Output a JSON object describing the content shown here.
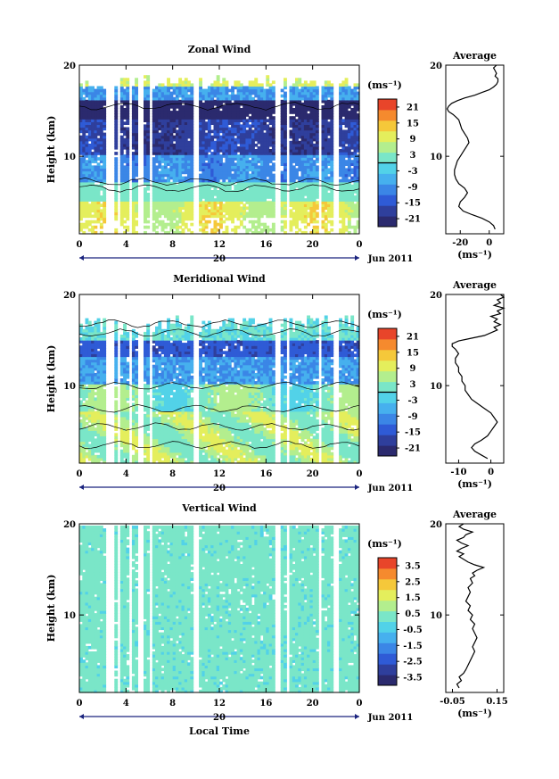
{
  "chart_data": [
    {
      "type": "heatmap",
      "title": "Zonal Wind",
      "ylabel": "Height (km)",
      "xlim": [
        0,
        24
      ],
      "ylim": [
        1.5,
        20
      ],
      "xticks": [
        "0",
        "4",
        "8",
        "12",
        "16",
        "20",
        "0"
      ],
      "yticks": [
        "10",
        "20"
      ],
      "date_label": "20",
      "month_label": "Jun 2011",
      "colorbar": {
        "unit": "(ms⁻¹)",
        "ticks": [
          "21",
          "15",
          "9",
          "3",
          "-3",
          "-9",
          "-15",
          "-21"
        ],
        "range": [
          -24,
          24
        ]
      },
      "profile": {
        "title": "Average",
        "unit": "(ms⁻¹)",
        "xticks": [
          "-20",
          "0"
        ],
        "xlim": [
          -30,
          10
        ],
        "yticks": [
          "10",
          "20"
        ],
        "x": [
          4,
          3,
          0,
          -5,
          -12,
          -18,
          -21,
          -20,
          -17,
          -15,
          -17,
          -21,
          -23,
          -24,
          -24,
          -23,
          -22,
          -20,
          -18,
          -16,
          -14,
          -15,
          -17,
          -19,
          -20,
          -21,
          -23,
          -25,
          -28,
          -29,
          -28,
          -26,
          -22,
          -17,
          -10,
          -5,
          0,
          3,
          5,
          6,
          6,
          4,
          5,
          4,
          3,
          5
        ],
        "y": [
          2.0,
          2.4,
          2.8,
          3.2,
          3.6,
          4.0,
          4.5,
          5.0,
          5.5,
          6.0,
          6.5,
          7.0,
          7.5,
          8.0,
          8.5,
          9.0,
          9.5,
          10.0,
          10.5,
          11.0,
          11.5,
          12.0,
          12.5,
          13.0,
          13.5,
          14.0,
          14.3,
          14.6,
          14.9,
          15.2,
          15.5,
          15.8,
          16.1,
          16.4,
          16.7,
          17.0,
          17.3,
          17.6,
          17.9,
          18.2,
          18.5,
          18.8,
          19.1,
          19.4,
          19.7,
          20.0
        ]
      }
    },
    {
      "type": "heatmap",
      "title": "Meridional Wind",
      "ylabel": "Height (km)",
      "xlim": [
        0,
        24
      ],
      "ylim": [
        1.5,
        20
      ],
      "xticks": [
        "0",
        "4",
        "8",
        "12",
        "16",
        "20",
        "0"
      ],
      "yticks": [
        "10",
        "20"
      ],
      "date_label": "20",
      "month_label": "Jun 2011",
      "colorbar": {
        "unit": "(ms⁻¹)",
        "ticks": [
          "21",
          "15",
          "9",
          "3",
          "-3",
          "-9",
          "-15",
          "-21"
        ],
        "range": [
          -24,
          24
        ]
      },
      "profile": {
        "title": "Average",
        "unit": "(ms⁻¹)",
        "xticks": [
          "-10",
          "0"
        ],
        "xlim": [
          -14,
          4
        ],
        "yticks": [
          "10",
          "20"
        ],
        "x": [
          -1,
          -3,
          -5,
          -6,
          -5,
          -3,
          -1,
          0,
          1,
          2,
          1,
          0,
          -2,
          -4,
          -6,
          -7,
          -8,
          -8,
          -9,
          -9,
          -10,
          -10,
          -11,
          -11,
          -10,
          -11,
          -12,
          -12,
          -10,
          -6,
          -2,
          0,
          2,
          1,
          3,
          1,
          2,
          0,
          3,
          2,
          4,
          1,
          3,
          2,
          4,
          3
        ],
        "y": [
          2.0,
          2.4,
          2.8,
          3.2,
          3.6,
          4.0,
          4.5,
          5.0,
          5.5,
          6.0,
          6.5,
          7.0,
          7.5,
          8.0,
          8.5,
          9.0,
          9.5,
          10.0,
          10.5,
          11.0,
          11.5,
          12.0,
          12.5,
          13.0,
          13.5,
          14.0,
          14.3,
          14.6,
          14.9,
          15.2,
          15.5,
          15.8,
          16.1,
          16.4,
          16.7,
          17.0,
          17.3,
          17.6,
          17.9,
          18.2,
          18.5,
          18.8,
          19.1,
          19.4,
          19.7,
          20.0
        ]
      }
    },
    {
      "type": "heatmap",
      "title": "Vertical Wind",
      "xlabel": "Local Time",
      "ylabel": "Height (km)",
      "xlim": [
        0,
        24
      ],
      "ylim": [
        1.5,
        20
      ],
      "xticks": [
        "0",
        "4",
        "8",
        "12",
        "16",
        "20",
        "0"
      ],
      "yticks": [
        "10",
        "20"
      ],
      "date_label": "20",
      "month_label": "Jun 2011",
      "colorbar": {
        "unit": "(ms⁻¹)",
        "ticks": [
          "3.5",
          "2.5",
          "1.5",
          "0.5",
          "-0.5",
          "-1.5",
          "-2.5",
          "-3.5"
        ],
        "range": [
          -4,
          4
        ]
      },
      "profile": {
        "title": "Average",
        "unit": "(ms⁻¹)",
        "xticks": [
          "-0.05",
          "0.15"
        ],
        "xlim": [
          -0.08,
          0.18
        ],
        "yticks": [
          "10",
          "20"
        ],
        "x": [
          -0.02,
          -0.03,
          -0.01,
          -0.02,
          0.0,
          0.01,
          0.02,
          0.03,
          0.04,
          0.05,
          0.04,
          0.05,
          0.06,
          0.05,
          0.04,
          0.05,
          0.03,
          0.04,
          0.02,
          0.03,
          0.01,
          0.02,
          0.03,
          0.02,
          0.04,
          0.03,
          0.05,
          0.04,
          0.06,
          0.09,
          0.05,
          0.02,
          0.0,
          -0.02,
          0.0,
          -0.03,
          -0.01,
          0.02,
          -0.01,
          -0.03,
          0.0,
          0.01,
          0.04,
          0.0,
          -0.02,
          0.0
        ],
        "y": [
          2.0,
          2.4,
          2.8,
          3.2,
          3.6,
          4.0,
          4.5,
          5.0,
          5.5,
          6.0,
          6.5,
          7.0,
          7.5,
          8.0,
          8.5,
          9.0,
          9.5,
          10.0,
          10.5,
          11.0,
          11.5,
          12.0,
          12.5,
          13.0,
          13.5,
          14.0,
          14.3,
          14.6,
          14.9,
          15.2,
          15.5,
          15.8,
          16.1,
          16.4,
          16.7,
          17.0,
          17.3,
          17.6,
          17.9,
          18.2,
          18.5,
          18.8,
          19.1,
          19.4,
          19.7,
          20.0
        ]
      }
    }
  ],
  "colors": {
    "scale": [
      "#2b2a6e",
      "#2f3f9c",
      "#2f5bd6",
      "#3b86e6",
      "#46b0ee",
      "#52d2e8",
      "#7ae6c8",
      "#b3ee8e",
      "#e4ee5c",
      "#f5c83a",
      "#f58a2e",
      "#e8452a"
    ],
    "axis": "#000000",
    "date_bar": "#1a237e"
  }
}
